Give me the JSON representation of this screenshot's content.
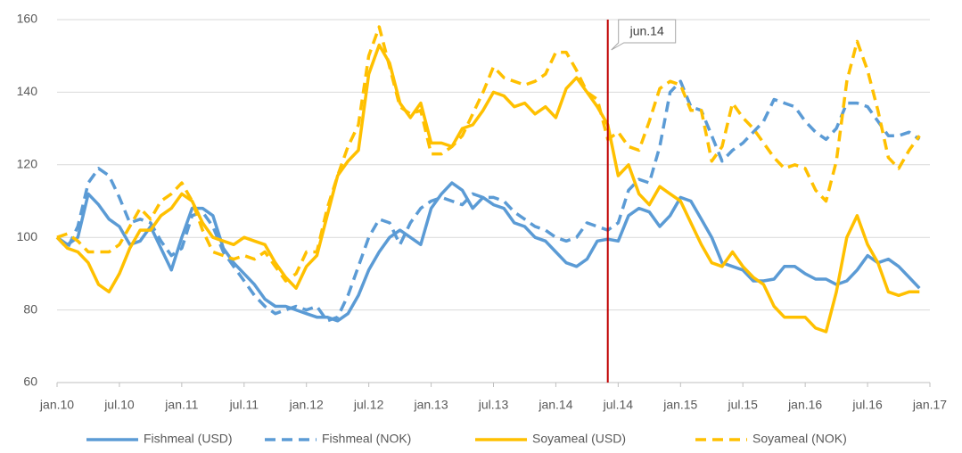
{
  "chart_data": {
    "type": "line",
    "x": [
      0,
      1,
      2,
      3,
      4,
      5,
      6,
      7,
      8,
      9,
      10,
      11,
      12,
      13,
      14,
      15,
      16,
      17,
      18,
      19,
      20,
      21,
      22,
      23,
      24,
      25,
      26,
      27,
      28,
      29,
      30,
      31,
      32,
      33,
      34,
      35,
      36,
      37,
      38,
      39,
      40,
      41,
      42,
      43,
      44,
      45,
      46,
      47,
      48,
      49,
      50,
      51,
      52,
      53,
      54,
      55,
      56,
      57,
      58,
      59,
      60,
      61,
      62,
      63,
      64,
      65,
      66,
      67,
      68,
      69,
      70,
      71,
      72,
      73,
      74,
      75,
      76,
      77,
      78,
      79,
      80,
      81,
      82,
      83
    ],
    "series": [
      {
        "name": "Fishmeal (USD)",
        "color": "#5b9bd5",
        "style": "solid",
        "values": [
          100,
          98,
          100,
          112,
          109,
          105,
          103,
          98,
          99,
          103,
          97,
          91,
          100,
          108,
          108,
          106,
          97,
          93,
          90,
          87,
          83,
          81,
          81,
          80,
          79,
          78,
          78,
          77,
          79,
          84,
          91,
          96,
          100,
          102,
          100,
          98,
          108,
          112,
          115,
          113,
          108,
          111,
          109,
          108,
          104,
          103,
          100,
          99,
          96,
          93,
          92,
          94,
          99,
          99.5,
          99,
          106,
          108,
          107,
          103,
          106,
          111,
          110,
          105,
          100,
          93,
          92,
          91,
          88,
          88,
          88.5,
          92,
          92,
          90,
          88.5,
          88.5,
          87,
          88,
          91,
          95,
          93,
          94,
          92,
          89,
          86
        ]
      },
      {
        "name": "Fishmeal (NOK)",
        "color": "#5b9bd5",
        "style": "dashed",
        "values": [
          100,
          97,
          103,
          115,
          119,
          117,
          111,
          104,
          105,
          104,
          99,
          95,
          97,
          106,
          107,
          103,
          96,
          92,
          88,
          84,
          81,
          79,
          80,
          81,
          80,
          81,
          77,
          78,
          84,
          92,
          100,
          105,
          104,
          98,
          104,
          108,
          110,
          111,
          110,
          109,
          112,
          111,
          111,
          110,
          107,
          105,
          103,
          102,
          100,
          99,
          100,
          104,
          103,
          102,
          104,
          113,
          116,
          115,
          125,
          140,
          143,
          136,
          135,
          128,
          121,
          124,
          126,
          129,
          132,
          138,
          137,
          136,
          132,
          129,
          127,
          130,
          137,
          137,
          136,
          132,
          128,
          128,
          129,
          127
        ]
      },
      {
        "name": "Soyameal (USD)",
        "color": "#ffc000",
        "style": "solid",
        "values": [
          100,
          97,
          96,
          93,
          87,
          85,
          90,
          97,
          102,
          102,
          106,
          108,
          112,
          110,
          104,
          100,
          99,
          98,
          100,
          99,
          98,
          93,
          89,
          86,
          92,
          95,
          106,
          117,
          121,
          124,
          145,
          153,
          148,
          137,
          133,
          137,
          126,
          126,
          125,
          130,
          131,
          135,
          140,
          139,
          136,
          137,
          134,
          136,
          133,
          141,
          144,
          140,
          136,
          131,
          117,
          120,
          112,
          109,
          114,
          112,
          110,
          104,
          98,
          93,
          92,
          96,
          92,
          89,
          87,
          81,
          78,
          78,
          78,
          75,
          74,
          85,
          100,
          106,
          98,
          93,
          85,
          84,
          85,
          85
        ]
      },
      {
        "name": "Soyameal (NOK)",
        "color": "#ffc000",
        "style": "dashed",
        "values": [
          100,
          101,
          99,
          96,
          96,
          96,
          98,
          103,
          108,
          105,
          110,
          112,
          115,
          110,
          102,
          96,
          95,
          94,
          95,
          94,
          96,
          92,
          88,
          90,
          96,
          96,
          108,
          117,
          125,
          131,
          150,
          158,
          147,
          136,
          134,
          135,
          123,
          123,
          125,
          128,
          134,
          140,
          147,
          144,
          143,
          142,
          143,
          145,
          151,
          151,
          146,
          140,
          138,
          127,
          129,
          125,
          124,
          132,
          141,
          143,
          142,
          135,
          135,
          121,
          125,
          137,
          133,
          130,
          126,
          122,
          119,
          120,
          119,
          113,
          110,
          121,
          143,
          154,
          146,
          135,
          122,
          119,
          124,
          128
        ]
      }
    ],
    "xlim": [
      0,
      84
    ],
    "xticks": [
      {
        "value": 0,
        "label": "jan.10"
      },
      {
        "value": 6,
        "label": "jul.10"
      },
      {
        "value": 12,
        "label": "jan.11"
      },
      {
        "value": 18,
        "label": "jul.11"
      },
      {
        "value": 24,
        "label": "jan.12"
      },
      {
        "value": 30,
        "label": "jul.12"
      },
      {
        "value": 36,
        "label": "jan.13"
      },
      {
        "value": 42,
        "label": "jul.13"
      },
      {
        "value": 48,
        "label": "jan.14"
      },
      {
        "value": 54,
        "label": "jul.14"
      },
      {
        "value": 60,
        "label": "jan.15"
      },
      {
        "value": 66,
        "label": "jul.15"
      },
      {
        "value": 72,
        "label": "jan.16"
      },
      {
        "value": 78,
        "label": "jul.16"
      },
      {
        "value": 84,
        "label": "jan.17"
      }
    ],
    "ylim": [
      60,
      160
    ],
    "yticks": [
      60,
      80,
      100,
      120,
      140,
      160
    ],
    "grid": true,
    "legend": "bottom",
    "annotation": {
      "x": 53,
      "label": "jun.14",
      "color": "#c00000"
    }
  }
}
